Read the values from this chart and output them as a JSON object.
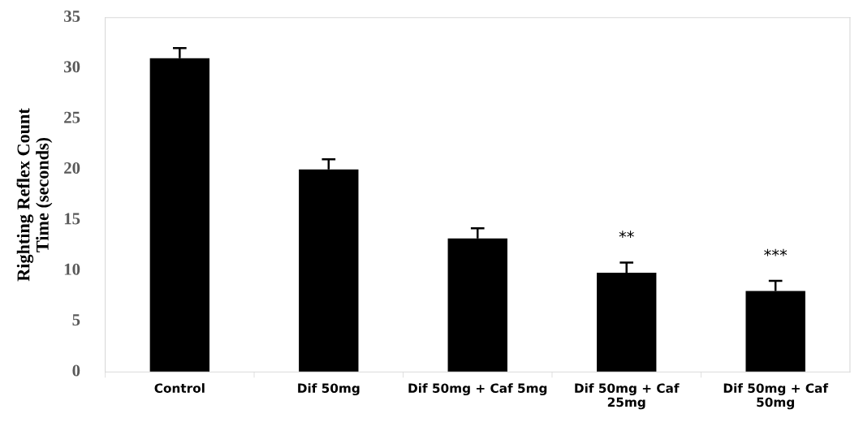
{
  "chart_data": {
    "type": "bar",
    "ylabel": "Righting Reflex Count\nTime (seconds)",
    "categories": [
      "Control",
      "Dif 50mg",
      "Dif 50mg + Caf 5mg",
      "Dif 50mg + Caf\n25mg",
      "Dif 50mg + Caf\n50mg"
    ],
    "values": [
      31.0,
      20.0,
      13.2,
      9.8,
      8.0
    ],
    "errors": [
      [
        31.0,
        32.0
      ],
      [
        20.0,
        21.0
      ],
      [
        13.2,
        14.2
      ],
      [
        9.8,
        10.8
      ],
      [
        8.0,
        9.0
      ]
    ],
    "color": "#000000",
    "ylim": [
      0,
      35
    ],
    "yticks": [
      0,
      5,
      10,
      15,
      20,
      25,
      30,
      35
    ],
    "grid": false,
    "annotations": [
      "**",
      "***"
    ]
  }
}
